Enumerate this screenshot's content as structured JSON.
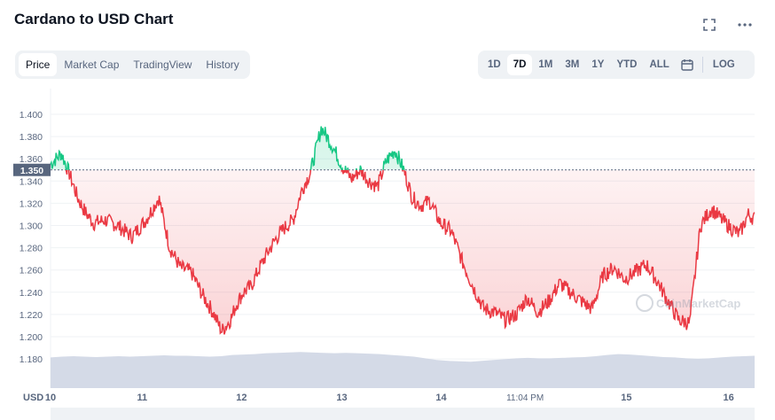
{
  "header": {
    "title": "Cardano to USD Chart"
  },
  "tabs": [
    "Price",
    "Market Cap",
    "TradingView",
    "History"
  ],
  "active_tab": 0,
  "ranges": [
    "1D",
    "7D",
    "1M",
    "3M",
    "1Y",
    "YTD",
    "ALL"
  ],
  "active_range": 1,
  "log_label": "LOG",
  "colors": {
    "up": "#16c784",
    "down": "#ea3943",
    "volume": "#cfd6e4",
    "accent": "#3861fb"
  },
  "watermark": "CoinMarketCap",
  "chart_data": {
    "type": "line",
    "currency_label": "USD",
    "current_price_label": "1.350",
    "reference_price": 1.35,
    "ylim": [
      1.18,
      1.41
    ],
    "y_ticks": [
      "1.400",
      "1.380",
      "1.360",
      "1.340",
      "1.320",
      "1.300",
      "1.280",
      "1.260",
      "1.240",
      "1.220",
      "1.200",
      "1.180"
    ],
    "x_ticks": [
      "10",
      "11",
      "12",
      "13",
      "14",
      "11:04 PM",
      "15",
      "16"
    ],
    "grid": true,
    "series": [
      {
        "x": [
          0.0,
          0.1,
          0.18,
          0.25,
          0.32,
          0.4,
          0.5,
          0.62,
          0.75,
          0.88,
          1.0,
          1.1,
          1.2,
          1.3,
          1.4,
          1.5,
          1.58,
          1.66,
          1.72,
          1.78,
          1.85,
          1.92,
          2.0,
          2.08,
          2.16,
          2.24,
          2.32,
          2.4,
          2.5,
          2.6,
          2.7,
          2.78,
          2.86,
          2.94,
          3.02,
          3.1,
          3.18,
          3.26,
          3.34,
          3.42,
          3.5,
          3.6,
          3.7,
          3.8,
          3.9,
          4.0,
          4.1,
          4.2,
          4.3,
          4.4,
          4.5,
          4.6,
          4.7,
          4.8,
          4.9,
          5.0,
          5.1,
          5.2,
          5.3,
          5.4,
          5.5,
          5.6,
          5.7,
          5.8,
          5.9,
          6.0,
          6.1,
          6.2,
          6.28,
          6.36,
          6.44,
          6.5
        ],
        "values": [
          1.355,
          1.365,
          1.345,
          1.325,
          1.312,
          1.302,
          1.305,
          1.3,
          1.29,
          1.305,
          1.325,
          1.28,
          1.262,
          1.258,
          1.238,
          1.222,
          1.205,
          1.215,
          1.23,
          1.24,
          1.245,
          1.26,
          1.275,
          1.288,
          1.298,
          1.305,
          1.332,
          1.348,
          1.388,
          1.372,
          1.352,
          1.342,
          1.35,
          1.34,
          1.335,
          1.358,
          1.368,
          1.35,
          1.325,
          1.318,
          1.322,
          1.302,
          1.295,
          1.268,
          1.245,
          1.225,
          1.222,
          1.215,
          1.22,
          1.235,
          1.222,
          1.232,
          1.248,
          1.24,
          1.232,
          1.225,
          1.255,
          1.262,
          1.252,
          1.258,
          1.265,
          1.25,
          1.232,
          1.215,
          1.212,
          1.3,
          1.315,
          1.305,
          1.298,
          1.292,
          1.31,
          1.306
        ]
      }
    ],
    "volume": [
      0.72,
      0.74,
      0.75,
      0.74,
      0.73,
      0.74,
      0.75,
      0.74,
      0.75,
      0.76,
      0.77,
      0.76,
      0.76,
      0.75,
      0.74,
      0.75,
      0.78,
      0.79,
      0.8,
      0.82,
      0.83,
      0.84,
      0.85,
      0.84,
      0.83,
      0.82,
      0.83,
      0.82,
      0.81,
      0.8,
      0.78,
      0.76,
      0.74,
      0.7,
      0.66,
      0.64,
      0.63,
      0.62,
      0.64,
      0.66,
      0.68,
      0.7,
      0.71,
      0.7,
      0.7,
      0.71,
      0.72,
      0.73,
      0.75,
      0.78,
      0.8,
      0.79,
      0.77,
      0.75,
      0.73,
      0.72,
      0.7,
      0.69,
      0.7,
      0.72,
      0.74,
      0.75,
      0.76
    ]
  }
}
